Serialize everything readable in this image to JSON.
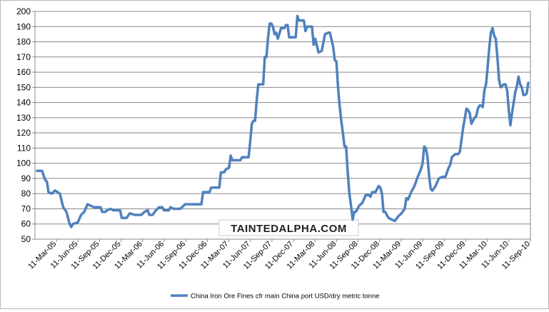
{
  "chart_data": {
    "type": "line",
    "title": "",
    "xlabel": "",
    "ylabel": "",
    "ylim": [
      50,
      200
    ],
    "yticks": [
      50,
      60,
      70,
      80,
      90,
      100,
      110,
      120,
      130,
      140,
      150,
      160,
      170,
      180,
      190,
      200
    ],
    "ytick_labels": [
      "50",
      "60",
      "70",
      "80",
      "90",
      "100",
      "110",
      "120",
      "130",
      "140",
      "150",
      "160",
      "170",
      "180",
      "190",
      "200"
    ],
    "xtick_labels": [
      "11-Mar-05",
      "11-Jun-05",
      "11-Sep-05",
      "11-Dec-05",
      "11-Mar-06",
      "11-Jun-06",
      "11-Sep-06",
      "11-Dec-06",
      "11-Mar-07",
      "11-Jun-07",
      "11-Sep-07",
      "11-Dec-07",
      "11-Mar-08",
      "11-Jun-08",
      "11-Sep-08",
      "11-Dec-08",
      "11-Mar-09",
      "11-Jun-09",
      "11-Sep-09",
      "11-Dec-09",
      "11-Mar-10",
      "11-Jun-10",
      "11-Sep-10"
    ],
    "grid": true,
    "legend_position": "bottom",
    "watermark": "TAINTEDALPHA.COM",
    "series_color": "#4f81bd",
    "series": [
      {
        "name": "China Iron Ore Fines cfr main China port USD/dry metric tonne",
        "points": [
          [
            0,
            95
          ],
          [
            3,
            95
          ],
          [
            5,
            89
          ],
          [
            6,
            88
          ],
          [
            7,
            81
          ],
          [
            9,
            80
          ],
          [
            11,
            82
          ],
          [
            14,
            80
          ],
          [
            16,
            71
          ],
          [
            18,
            68
          ],
          [
            20,
            60
          ],
          [
            21,
            58
          ],
          [
            22,
            60
          ],
          [
            25,
            61
          ],
          [
            27,
            66
          ],
          [
            29,
            68
          ],
          [
            31,
            73
          ],
          [
            33,
            72
          ],
          [
            35,
            71
          ],
          [
            39,
            71
          ],
          [
            40,
            68
          ],
          [
            42,
            68
          ],
          [
            43,
            69
          ],
          [
            45,
            70
          ],
          [
            47,
            69
          ],
          [
            51,
            69
          ],
          [
            52,
            64
          ],
          [
            55,
            64
          ],
          [
            57,
            67
          ],
          [
            60,
            66
          ],
          [
            64,
            66
          ],
          [
            66,
            68
          ],
          [
            68,
            69
          ],
          [
            69,
            66
          ],
          [
            71,
            66
          ],
          [
            73,
            69
          ],
          [
            75,
            71
          ],
          [
            77,
            71
          ],
          [
            78,
            69
          ],
          [
            81,
            69
          ],
          [
            82,
            71
          ],
          [
            84,
            70
          ],
          [
            88,
            70
          ],
          [
            89,
            71
          ],
          [
            91,
            73
          ],
          [
            101,
            73
          ],
          [
            102,
            81
          ],
          [
            106,
            81
          ],
          [
            107,
            84
          ],
          [
            112,
            84
          ],
          [
            113,
            94
          ],
          [
            115,
            94
          ],
          [
            116,
            96
          ],
          [
            118,
            97
          ],
          [
            119,
            105
          ],
          [
            120,
            102
          ],
          [
            125,
            102
          ],
          [
            126,
            104
          ],
          [
            130,
            104
          ],
          [
            131,
            114
          ],
          [
            132,
            126
          ],
          [
            133,
            128
          ],
          [
            134,
            128
          ],
          [
            135,
            141
          ],
          [
            136,
            152
          ],
          [
            139,
            152
          ],
          [
            140,
            170
          ],
          [
            141,
            170
          ],
          [
            142,
            183
          ],
          [
            143,
            192
          ],
          [
            144,
            192
          ],
          [
            145,
            190
          ],
          [
            146,
            185
          ],
          [
            147,
            186
          ],
          [
            148,
            182
          ],
          [
            150,
            189
          ],
          [
            152,
            189
          ],
          [
            153,
            191
          ],
          [
            154,
            191
          ],
          [
            155,
            183
          ],
          [
            159,
            183
          ],
          [
            160,
            197
          ],
          [
            161,
            194
          ],
          [
            164,
            194
          ],
          [
            165,
            187
          ],
          [
            166,
            190
          ],
          [
            169,
            190
          ],
          [
            170,
            178
          ],
          [
            171,
            182
          ],
          [
            173,
            173
          ],
          [
            175,
            174
          ],
          [
            177,
            185
          ],
          [
            179,
            186
          ],
          [
            180,
            186
          ],
          [
            182,
            177
          ],
          [
            183,
            168
          ],
          [
            184,
            167
          ],
          [
            185,
            150
          ],
          [
            186,
            138
          ],
          [
            187,
            128
          ],
          [
            188,
            120
          ],
          [
            189,
            111
          ],
          [
            190,
            111
          ],
          [
            191,
            94
          ],
          [
            192,
            80
          ],
          [
            193,
            72
          ],
          [
            194,
            63
          ],
          [
            195,
            68
          ],
          [
            196,
            68
          ],
          [
            198,
            72
          ],
          [
            200,
            74
          ],
          [
            202,
            79
          ],
          [
            204,
            79
          ],
          [
            205,
            78
          ],
          [
            206,
            81
          ],
          [
            208,
            81
          ],
          [
            210,
            85
          ],
          [
            211,
            84
          ],
          [
            212,
            80
          ],
          [
            213,
            68
          ],
          [
            214,
            68
          ],
          [
            216,
            64
          ],
          [
            218,
            63
          ],
          [
            220,
            62
          ],
          [
            222,
            65
          ],
          [
            224,
            67
          ],
          [
            226,
            70
          ],
          [
            227,
            77
          ],
          [
            228,
            76
          ],
          [
            230,
            81
          ],
          [
            232,
            85
          ],
          [
            234,
            91
          ],
          [
            236,
            96
          ],
          [
            237,
            100
          ],
          [
            238,
            111
          ],
          [
            239,
            110
          ],
          [
            240,
            104
          ],
          [
            241,
            92
          ],
          [
            242,
            83
          ],
          [
            243,
            82
          ],
          [
            245,
            85
          ],
          [
            247,
            90
          ],
          [
            249,
            91
          ],
          [
            251,
            91
          ],
          [
            253,
            97
          ],
          [
            254,
            99
          ],
          [
            255,
            104
          ],
          [
            257,
            106
          ],
          [
            259,
            106
          ],
          [
            260,
            108
          ],
          [
            261,
            116
          ],
          [
            262,
            124
          ],
          [
            263,
            130
          ],
          [
            264,
            136
          ],
          [
            265,
            135
          ],
          [
            266,
            133
          ],
          [
            267,
            126
          ],
          [
            268,
            128
          ],
          [
            269,
            130
          ],
          [
            270,
            131
          ],
          [
            271,
            136
          ],
          [
            272,
            138
          ],
          [
            273,
            138
          ],
          [
            274,
            137
          ],
          [
            275,
            148
          ],
          [
            276,
            152
          ],
          [
            277,
            163
          ],
          [
            278,
            176
          ],
          [
            279,
            186
          ],
          [
            280,
            189
          ],
          [
            281,
            184
          ],
          [
            282,
            182
          ],
          [
            283,
            170
          ],
          [
            284,
            155
          ],
          [
            285,
            150
          ],
          [
            286,
            151
          ],
          [
            287,
            152
          ],
          [
            288,
            152
          ],
          [
            289,
            148
          ],
          [
            290,
            135
          ],
          [
            291,
            125
          ],
          [
            292,
            133
          ],
          [
            293,
            140
          ],
          [
            294,
            147
          ],
          [
            295,
            151
          ],
          [
            296,
            157
          ],
          [
            297,
            152
          ],
          [
            298,
            150
          ],
          [
            299,
            145
          ],
          [
            300,
            145
          ],
          [
            301,
            146
          ],
          [
            302,
            153
          ]
        ]
      }
    ]
  }
}
